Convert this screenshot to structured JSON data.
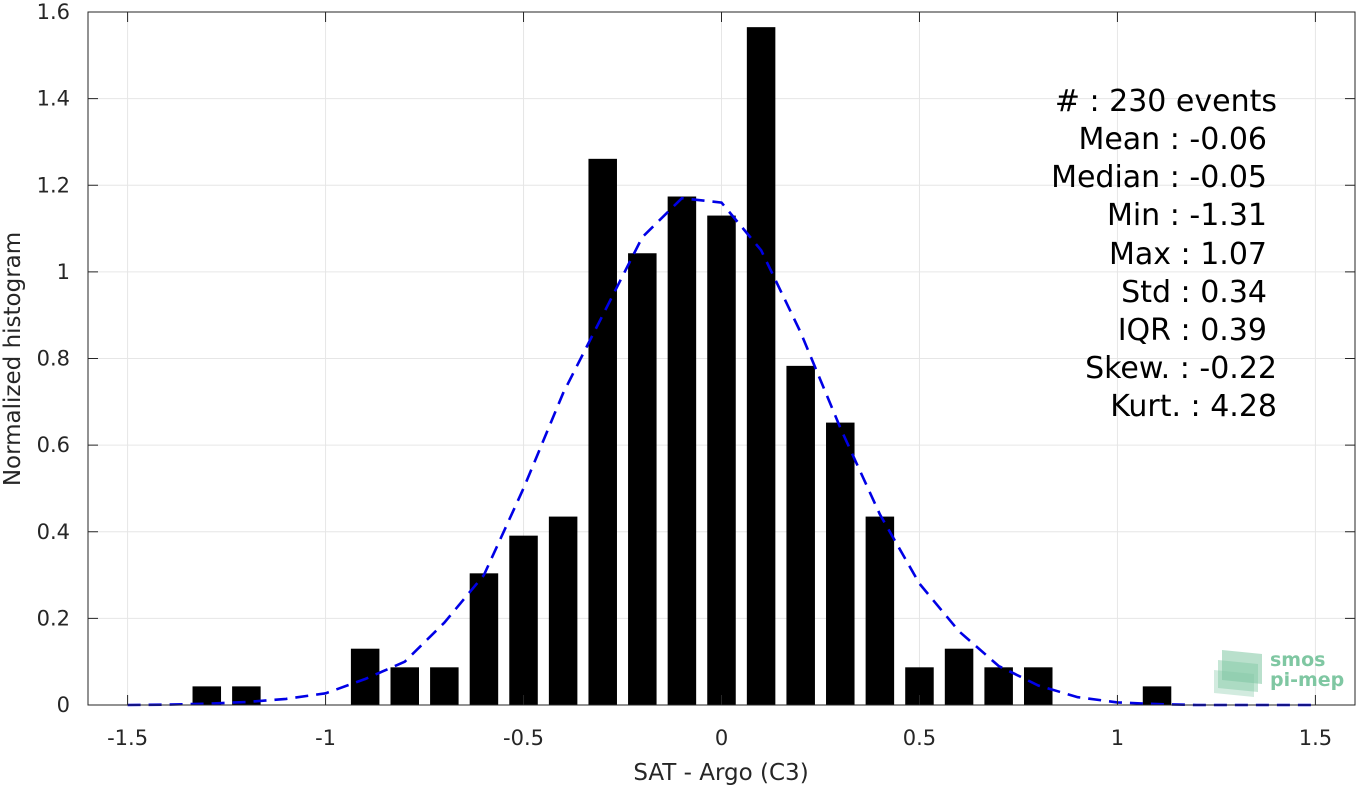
{
  "chart_data": {
    "type": "bar",
    "xlabel": "SAT - Argo (C3)",
    "ylabel": "Normalized histogram",
    "xlim": [
      -1.6,
      1.6
    ],
    "ylim": [
      0,
      1.6
    ],
    "xticks": [
      -1.5,
      -1,
      -0.5,
      0,
      0.5,
      1,
      1.5
    ],
    "xtick_labels": [
      "-1.5",
      "-1",
      "-0.5",
      "0",
      "0.5",
      "1",
      "1.5"
    ],
    "yticks": [
      0,
      0.2,
      0.4,
      0.6,
      0.8,
      1,
      1.2,
      1.4,
      1.6
    ],
    "ytick_labels": [
      "0",
      "0.2",
      "0.4",
      "0.6",
      "0.8",
      "1",
      "1.2",
      "1.4",
      "1.6"
    ],
    "grid": true,
    "bar_color": "#000000",
    "bin_width": 0.1,
    "bins": [
      -1.3,
      -1.2,
      -1.1,
      -1.0,
      -0.9,
      -0.8,
      -0.7,
      -0.6,
      -0.5,
      -0.4,
      -0.3,
      -0.2,
      -0.1,
      0.0,
      0.1,
      0.2,
      0.3,
      0.4,
      0.5,
      0.6,
      0.7,
      0.8,
      0.9,
      1.0,
      1.1
    ],
    "values": [
      0.043,
      0.043,
      0,
      0,
      0.13,
      0.087,
      0.087,
      0.304,
      0.391,
      0.435,
      1.261,
      1.043,
      1.174,
      1.13,
      1.565,
      0.783,
      0.652,
      0.435,
      0.087,
      0.13,
      0.087,
      0.087,
      0,
      0,
      0.043
    ],
    "fit_curve": {
      "label": "",
      "color": "#0000e6",
      "style": "dashed",
      "x": [
        -1.5,
        -1.4,
        -1.3,
        -1.2,
        -1.1,
        -1.0,
        -0.9,
        -0.8,
        -0.7,
        -0.6,
        -0.5,
        -0.4,
        -0.3,
        -0.2,
        -0.1,
        0.0,
        0.1,
        0.2,
        0.3,
        0.4,
        0.5,
        0.6,
        0.7,
        0.8,
        0.9,
        1.0,
        1.1,
        1.2,
        1.3,
        1.4,
        1.5
      ],
      "y": [
        0.0,
        0.001,
        0.003,
        0.007,
        0.014,
        0.027,
        0.06,
        0.1,
        0.19,
        0.3,
        0.5,
        0.72,
        0.9,
        1.08,
        1.17,
        1.16,
        1.05,
        0.86,
        0.64,
        0.44,
        0.28,
        0.17,
        0.09,
        0.045,
        0.018,
        0.006,
        0.002,
        0.0,
        0.0,
        0.0,
        0.0
      ]
    }
  },
  "stats": {
    "lines": [
      "#  : 230 events",
      "Mean : -0.06",
      "Median : -0.05",
      "Min : -1.31",
      "Max : 1.07",
      "Std : 0.34",
      "IQR : 0.39",
      "Skew. : -0.22",
      "Kurt. : 4.28"
    ]
  },
  "logo": {
    "line1": "smos",
    "line2": "pi-mep",
    "color": "#7fc7a2"
  }
}
